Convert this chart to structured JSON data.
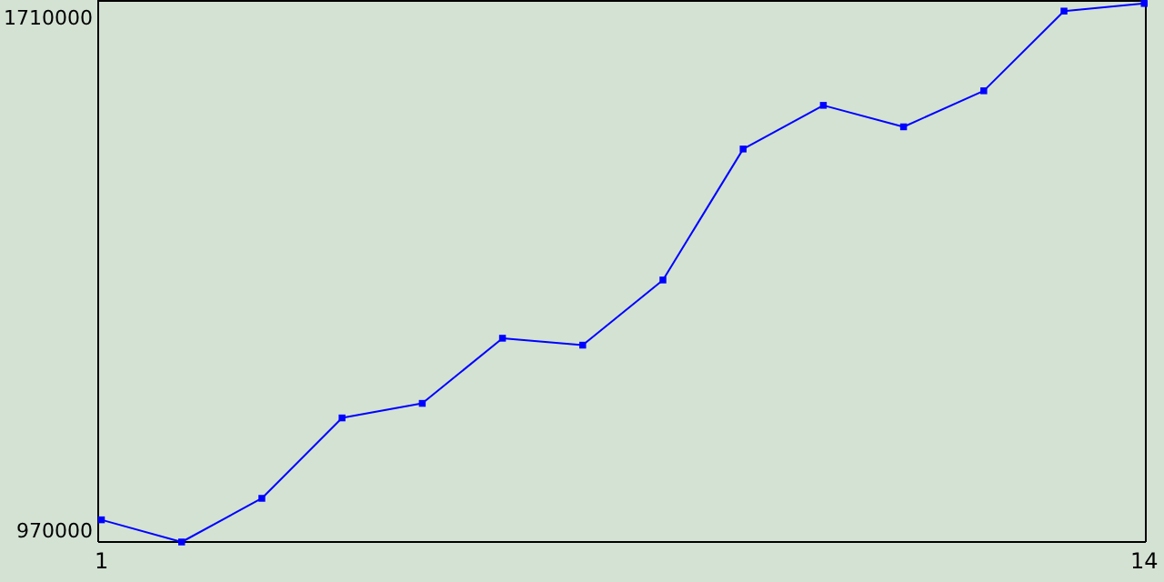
{
  "chart_data": {
    "type": "line",
    "x": [
      1,
      2,
      3,
      4,
      5,
      6,
      7,
      8,
      9,
      10,
      11,
      12,
      13,
      14
    ],
    "series": [
      {
        "color": "#0000ff",
        "values": [
          986000,
          954000,
          1017000,
          1133000,
          1154000,
          1248000,
          1238000,
          1332000,
          1521000,
          1584000,
          1553000,
          1605000,
          1720000,
          1731000
        ]
      }
    ],
    "xlim": [
      0.96,
      14.02
    ],
    "xticks": [
      1,
      14
    ],
    "ylim": [
      954000,
      1736000
    ],
    "yticks": [
      970000,
      1710000
    ],
    "marker": "square",
    "grid": false
  }
}
